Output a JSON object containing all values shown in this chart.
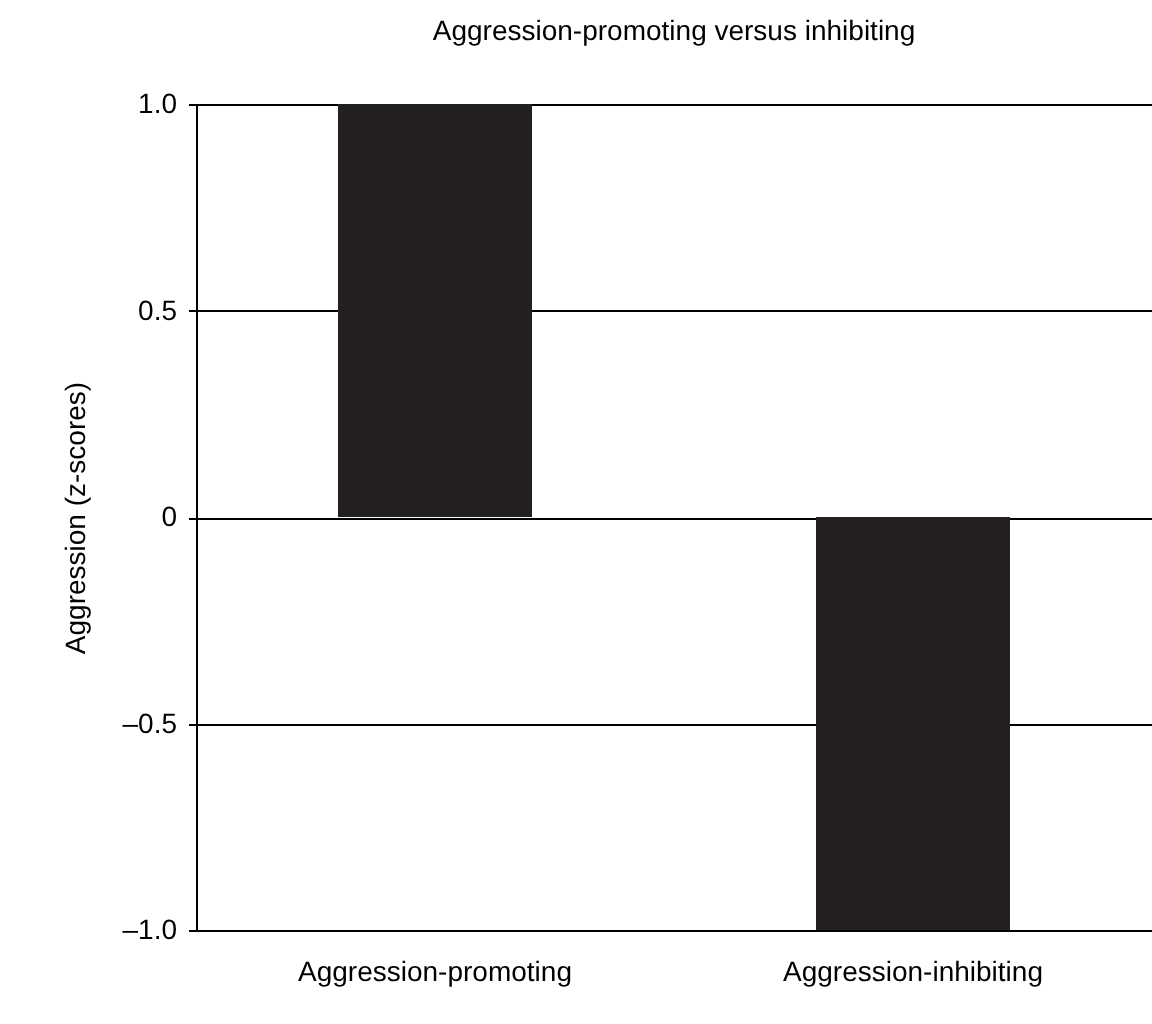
{
  "chart_data": {
    "type": "bar",
    "title": "Aggression-promoting versus inhibiting",
    "ylabel": "Aggression (z-scores)",
    "categories": [
      "Aggression-promoting",
      "Aggression-inhibiting"
    ],
    "values": [
      1.0,
      -1.0
    ],
    "color": "#231f20",
    "ylim": [
      -1.0,
      1.0
    ],
    "yticks": [
      {
        "value": -1.0,
        "label": "–1.0"
      },
      {
        "value": -0.5,
        "label": "–0.5"
      },
      0,
      0.5,
      {
        "value": 1.0,
        "label": "1.0"
      }
    ],
    "grid": "y"
  }
}
